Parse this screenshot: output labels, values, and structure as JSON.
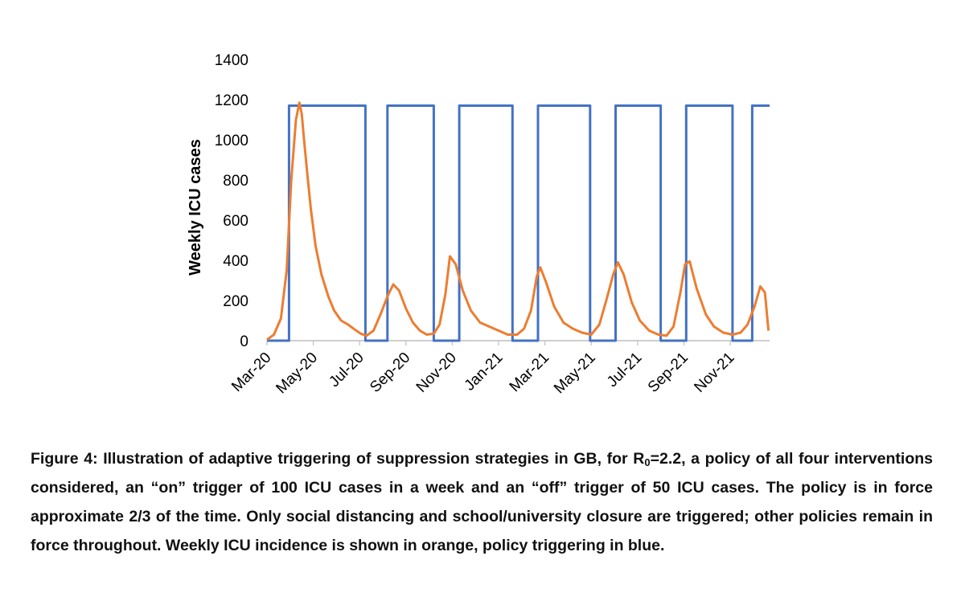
{
  "chart_data": {
    "type": "line",
    "title": "",
    "xlabel": "",
    "ylabel": "Weekly ICU cases",
    "ylim": [
      0,
      1400
    ],
    "yticks": [
      0,
      200,
      400,
      600,
      800,
      1000,
      1200,
      1400
    ],
    "x_unit": "months since Mar-20",
    "xlim": [
      0,
      21.7
    ],
    "xticks": [
      {
        "x": 0,
        "label": "Mar-20"
      },
      {
        "x": 2,
        "label": "May-20"
      },
      {
        "x": 4,
        "label": "Jul-20"
      },
      {
        "x": 6,
        "label": "Sep-20"
      },
      {
        "x": 8,
        "label": "Nov-20"
      },
      {
        "x": 10,
        "label": "Jan-21"
      },
      {
        "x": 12,
        "label": "Mar-21"
      },
      {
        "x": 14,
        "label": "May-21"
      },
      {
        "x": 16,
        "label": "Jul-21"
      },
      {
        "x": 18,
        "label": "Sep-21"
      },
      {
        "x": 20,
        "label": "Nov-21"
      }
    ],
    "series": [
      {
        "name": "Policy triggering",
        "color": "#4472C4",
        "x": [
          0,
          0.95,
          0.95,
          4.25,
          4.25,
          5.2,
          5.2,
          7.2,
          7.2,
          8.3,
          8.3,
          10.6,
          10.6,
          11.7,
          11.7,
          13.95,
          13.95,
          15.05,
          15.05,
          17.0,
          17.0,
          18.1,
          18.1,
          20.1,
          20.1,
          20.95,
          20.95,
          21.7
        ],
        "y": [
          0,
          0,
          1170,
          1170,
          0,
          0,
          1170,
          1170,
          0,
          0,
          1170,
          1170,
          0,
          0,
          1170,
          1170,
          0,
          0,
          1170,
          1170,
          0,
          0,
          1170,
          1170,
          0,
          0,
          1170,
          1170
        ]
      },
      {
        "name": "Weekly ICU incidence",
        "color": "#ED7D31",
        "x": [
          0,
          0.3,
          0.6,
          0.85,
          1.05,
          1.25,
          1.4,
          1.5,
          1.6,
          1.75,
          1.9,
          2.1,
          2.35,
          2.65,
          2.9,
          3.2,
          3.5,
          3.8,
          4.05,
          4.3,
          4.6,
          4.9,
          5.2,
          5.45,
          5.7,
          6.0,
          6.3,
          6.6,
          6.9,
          7.2,
          7.45,
          7.7,
          7.9,
          8.15,
          8.45,
          8.8,
          9.2,
          9.6,
          10.0,
          10.4,
          10.8,
          11.1,
          11.4,
          11.65,
          11.8,
          12.05,
          12.4,
          12.8,
          13.2,
          13.6,
          14.0,
          14.35,
          14.65,
          14.95,
          15.15,
          15.4,
          15.75,
          16.1,
          16.5,
          16.9,
          17.25,
          17.55,
          17.85,
          18.05,
          18.25,
          18.55,
          18.95,
          19.3,
          19.7,
          20.1,
          20.45,
          20.75,
          21.05,
          21.3,
          21.5,
          21.65
        ],
        "y": [
          5,
          30,
          110,
          350,
          800,
          1100,
          1185,
          1130,
          1000,
          820,
          650,
          470,
          330,
          220,
          150,
          100,
          80,
          55,
          35,
          25,
          50,
          130,
          220,
          280,
          250,
          160,
          90,
          50,
          30,
          35,
          80,
          230,
          420,
          380,
          250,
          150,
          90,
          70,
          50,
          30,
          30,
          60,
          150,
          320,
          365,
          290,
          170,
          90,
          60,
          40,
          30,
          80,
          200,
          330,
          390,
          330,
          190,
          100,
          50,
          30,
          25,
          70,
          240,
          380,
          395,
          260,
          130,
          70,
          40,
          30,
          40,
          80,
          170,
          270,
          240,
          50
        ]
      }
    ]
  },
  "caption": {
    "label": "Figure 4:",
    "text_before_sub": " Illustration of adaptive triggering of suppression strategies in GB, for R",
    "sub": "0",
    "text_after_sub": "=2.2, a policy of all four interventions considered, an “on” trigger of 100 ICU cases in a week and an “off” trigger of 50 ICU cases.  The policy is in force approximate 2/3 of the time. Only social distancing and school/university closure are triggered; other policies remain in force throughout. Weekly ICU incidence is shown in orange, policy triggering in blue."
  }
}
